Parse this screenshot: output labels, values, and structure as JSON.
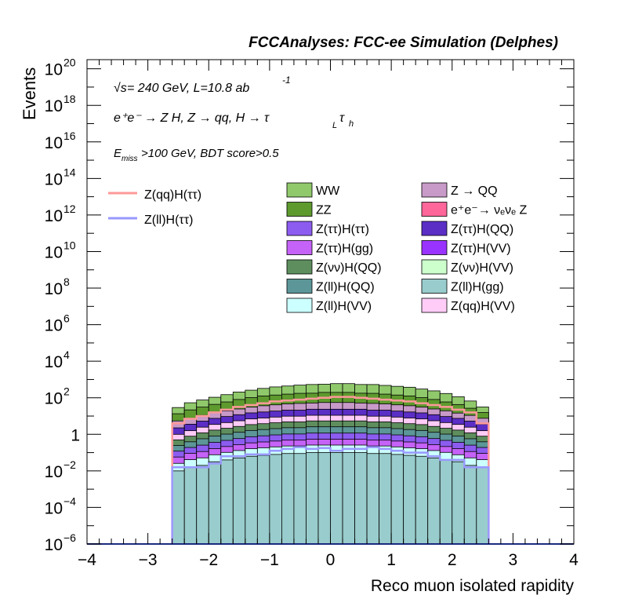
{
  "header": {
    "title": "FCCAnalyses: FCC-ee Simulation (Delphes)"
  },
  "annotations": {
    "sqrt_s_symbol": "√s",
    "energy_lumi": " = 240 GeV, L=10.8 ab",
    "lumi_exp": "-1",
    "process": "e⁺e⁻ → Z H, Z → qq, H → τ",
    "process_sub_L": "L",
    "process_tau2": "τ",
    "process_sub_h": "h",
    "cut_E": "E",
    "cut_sub": "miss",
    "cut_rest": ">100 GeV, BDT score>0.5"
  },
  "chart_data": {
    "type": "histogram",
    "xlabel": "Reco muon isolated rapidity",
    "ylabel": "Events",
    "xlim": [
      -4,
      4
    ],
    "ylim_log10": [
      -6,
      20.5
    ],
    "log_y": true,
    "x_ticks": [
      "−4",
      "−3",
      "−2",
      "−1",
      "0",
      "1",
      "2",
      "3",
      "4"
    ],
    "y_ticks": [
      {
        "base": "10",
        "exp": "−6",
        "log": -6
      },
      {
        "base": "10",
        "exp": "−4",
        "log": -4
      },
      {
        "base": "10",
        "exp": "−2",
        "log": -2
      },
      {
        "base": "1",
        "exp": "",
        "log": 0
      },
      {
        "base": "10",
        "exp": "2",
        "log": 2
      },
      {
        "base": "10",
        "exp": "4",
        "log": 4
      },
      {
        "base": "10",
        "exp": "6",
        "log": 6
      },
      {
        "base": "10",
        "exp": "8",
        "log": 8
      },
      {
        "base": "10",
        "exp": "10",
        "log": 10
      },
      {
        "base": "10",
        "exp": "12",
        "log": 12
      },
      {
        "base": "10",
        "exp": "14",
        "log": 14
      },
      {
        "base": "10",
        "exp": "16",
        "log": 16
      },
      {
        "base": "10",
        "exp": "18",
        "log": 18
      },
      {
        "base": "10",
        "exp": "20",
        "log": 20
      }
    ],
    "bin_edges": [
      -2.6,
      -2.4,
      -2.2,
      -2.0,
      -1.8,
      -1.6,
      -1.4,
      -1.2,
      -1.0,
      -0.8,
      -0.6,
      -0.4,
      -0.2,
      0.0,
      0.2,
      0.4,
      0.6,
      0.8,
      1.0,
      1.2,
      1.4,
      1.6,
      1.8,
      2.0,
      2.2,
      2.4,
      2.6
    ],
    "stack": [
      {
        "name": "WW",
        "color": "#90c96b",
        "log_values": [
          1.2,
          1.5,
          1.65,
          1.8,
          1.95,
          2.1,
          2.2,
          2.3,
          2.4,
          2.45,
          2.5,
          2.55,
          2.55,
          2.6,
          2.6,
          2.55,
          2.55,
          2.5,
          2.45,
          2.4,
          2.3,
          2.2,
          2.05,
          1.85,
          1.6,
          1.2
        ]
      },
      {
        "name": "ZZ",
        "color": "#5e9a2e",
        "log_values": [
          0.9,
          1.15,
          1.3,
          1.45,
          1.6,
          1.75,
          1.85,
          1.95,
          2.0,
          2.05,
          2.1,
          2.1,
          2.15,
          2.15,
          2.15,
          2.1,
          2.1,
          2.05,
          2.0,
          1.95,
          1.85,
          1.75,
          1.6,
          1.45,
          1.2,
          0.9
        ]
      },
      {
        "name": "Z → QQ",
        "color": "#c89ac8",
        "log_values": [
          0.5,
          0.6,
          0.75,
          0.9,
          1.0,
          1.1,
          1.2,
          1.3,
          1.35,
          1.4,
          1.45,
          1.45,
          1.5,
          1.5,
          1.5,
          1.45,
          1.45,
          1.4,
          1.35,
          1.3,
          1.2,
          1.1,
          1.0,
          0.85,
          0.75,
          0.6
        ]
      },
      {
        "name": "Z(ττ)H(QQ)",
        "color": "#5b2ec6",
        "log_values": [
          0.1,
          0.3,
          0.45,
          0.6,
          0.7,
          0.8,
          0.9,
          0.95,
          1.0,
          1.05,
          1.05,
          1.1,
          1.1,
          1.1,
          1.1,
          1.1,
          1.05,
          1.05,
          1.0,
          0.95,
          0.9,
          0.8,
          0.7,
          0.6,
          0.45,
          0.3
        ]
      },
      {
        "name": "Z(qq)H(VV)",
        "color": "#ffccf7",
        "log_values": [
          -0.3,
          -0.1,
          0.1,
          0.25,
          0.35,
          0.45,
          0.55,
          0.6,
          0.65,
          0.7,
          0.7,
          0.75,
          0.75,
          0.75,
          0.75,
          0.75,
          0.7,
          0.7,
          0.65,
          0.6,
          0.55,
          0.45,
          0.35,
          0.25,
          0.1,
          -0.1
        ]
      },
      {
        "name": "Z(νν)H(QQ)",
        "color": "#5e8e5e",
        "log_values": [
          -0.6,
          -0.4,
          -0.2,
          -0.05,
          0.05,
          0.15,
          0.25,
          0.3,
          0.35,
          0.4,
          0.4,
          0.45,
          0.45,
          0.45,
          0.45,
          0.45,
          0.4,
          0.4,
          0.35,
          0.3,
          0.25,
          0.15,
          0.05,
          -0.05,
          -0.2,
          -0.4
        ]
      },
      {
        "name": "Z(ll)H(QQ)",
        "color": "#5c9698",
        "log_values": [
          -0.9,
          -0.7,
          -0.5,
          -0.35,
          -0.25,
          -0.15,
          -0.05,
          0.0,
          0.05,
          0.1,
          0.1,
          0.15,
          0.15,
          0.15,
          0.15,
          0.15,
          0.1,
          0.1,
          0.05,
          0.0,
          -0.05,
          -0.15,
          -0.25,
          -0.35,
          -0.5,
          -0.7
        ]
      },
      {
        "name": "Z(ττ)H(ττ)",
        "color": "#8c5cf0",
        "log_values": [
          -1.2,
          -1.0,
          -0.85,
          -0.7,
          -0.6,
          -0.5,
          -0.4,
          -0.35,
          -0.3,
          -0.25,
          -0.25,
          -0.2,
          -0.2,
          -0.2,
          -0.2,
          -0.2,
          -0.25,
          -0.25,
          -0.3,
          -0.35,
          -0.4,
          -0.5,
          -0.6,
          -0.7,
          -0.85,
          -1.0
        ]
      },
      {
        "name": "Z(ττ)H(gg)",
        "color": "#c562f7",
        "log_values": [
          -1.5,
          -1.3,
          -1.2,
          -1.05,
          -0.95,
          -0.85,
          -0.75,
          -0.7,
          -0.65,
          -0.6,
          -0.6,
          -0.55,
          -0.55,
          -0.55,
          -0.55,
          -0.55,
          -0.6,
          -0.6,
          -0.65,
          -0.7,
          -0.75,
          -0.85,
          -0.95,
          -1.05,
          -1.2,
          -1.3
        ]
      },
      {
        "name": "Z(ll)H(VV)",
        "color": "#ccffff",
        "log_values": [
          -1.8,
          -1.6,
          -1.5,
          -1.35,
          -1.2,
          -1.1,
          -1.0,
          -0.95,
          -0.9,
          -0.85,
          -0.85,
          -0.8,
          -0.8,
          -0.8,
          -0.8,
          -0.8,
          -0.85,
          -0.85,
          -0.9,
          -0.95,
          -1.0,
          -1.1,
          -1.2,
          -1.35,
          -1.5,
          -1.6
        ]
      },
      {
        "name": "Z(ll)H(gg)",
        "color": "#99cccc",
        "log_values": [
          -2.0,
          -1.8,
          -1.7,
          -1.5,
          -1.4,
          -1.3,
          -1.2,
          -1.15,
          -1.1,
          -1.05,
          -1.05,
          -1.0,
          -1.0,
          -1.0,
          -1.0,
          -1.0,
          -1.05,
          -1.05,
          -1.1,
          -1.15,
          -1.2,
          -1.3,
          -1.4,
          -1.5,
          -1.7,
          -1.8
        ]
      }
    ],
    "legend_extra": [
      {
        "name": "Z(ττ)H(VV)",
        "color": "#9933ff"
      },
      {
        "name": "Z(νν)H(VV)",
        "color": "#ccffcc"
      },
      {
        "name": "e⁺e⁻→ ν_e ν_e Z",
        "color": "#ff6699"
      }
    ],
    "lines": [
      {
        "name": "Z(qq)H(ττ)",
        "color": "#ff9999",
        "log_values": [
          0.6,
          0.85,
          1.0,
          1.2,
          1.35,
          1.5,
          1.6,
          1.7,
          1.8,
          1.85,
          1.9,
          1.95,
          2.0,
          2.05,
          2.05,
          2.0,
          1.95,
          1.9,
          1.85,
          1.8,
          1.7,
          1.6,
          1.5,
          1.35,
          1.2,
          0.6
        ]
      },
      {
        "name": "Z(ll)H(ττ)",
        "color": "#9999ff",
        "log_values": [
          -1.8,
          -1.8,
          -1.8,
          -1.6,
          -1.2,
          -1.2,
          -1.1,
          -1.1,
          -0.9,
          -0.8,
          -0.7,
          -0.8,
          -0.75,
          -0.9,
          -0.8,
          -0.8,
          -0.7,
          -0.8,
          -0.9,
          -1.0,
          -1.0,
          -1.2,
          -1.4,
          -1.4,
          -1.8,
          -1.8
        ]
      }
    ]
  },
  "legend": {
    "lines": [
      {
        "label": "Z(qq)H(ττ)",
        "color": "#ff9999"
      },
      {
        "label": "Z(ll)H(ττ)",
        "color": "#9999ff"
      }
    ],
    "col1": [
      {
        "label": "WW",
        "color": "#90c96b"
      },
      {
        "label": "ZZ",
        "color": "#5e9a2e"
      },
      {
        "label": "Z(ττ)H(ττ)",
        "color": "#8c5cf0"
      },
      {
        "label": "Z(ττ)H(gg)",
        "color": "#c562f7"
      },
      {
        "label": "Z(νν)H(QQ)",
        "color": "#5e8e5e"
      },
      {
        "label": "Z(ll)H(QQ)",
        "color": "#5c9698"
      },
      {
        "label": "Z(ll)H(VV)",
        "color": "#ccffff"
      }
    ],
    "col2": [
      {
        "label": "Z → QQ",
        "color": "#c89ac8"
      },
      {
        "label": "e⁺e⁻→ νₑνₑ Z",
        "color": "#ff6699"
      },
      {
        "label": "Z(ττ)H(QQ)",
        "color": "#5b2ec6"
      },
      {
        "label": "Z(ττ)H(VV)",
        "color": "#9933ff"
      },
      {
        "label": "Z(νν)H(VV)",
        "color": "#ccffcc"
      },
      {
        "label": "Z(ll)H(gg)",
        "color": "#99cccc"
      },
      {
        "label": "Z(qq)H(VV)",
        "color": "#ffccf7"
      }
    ]
  }
}
